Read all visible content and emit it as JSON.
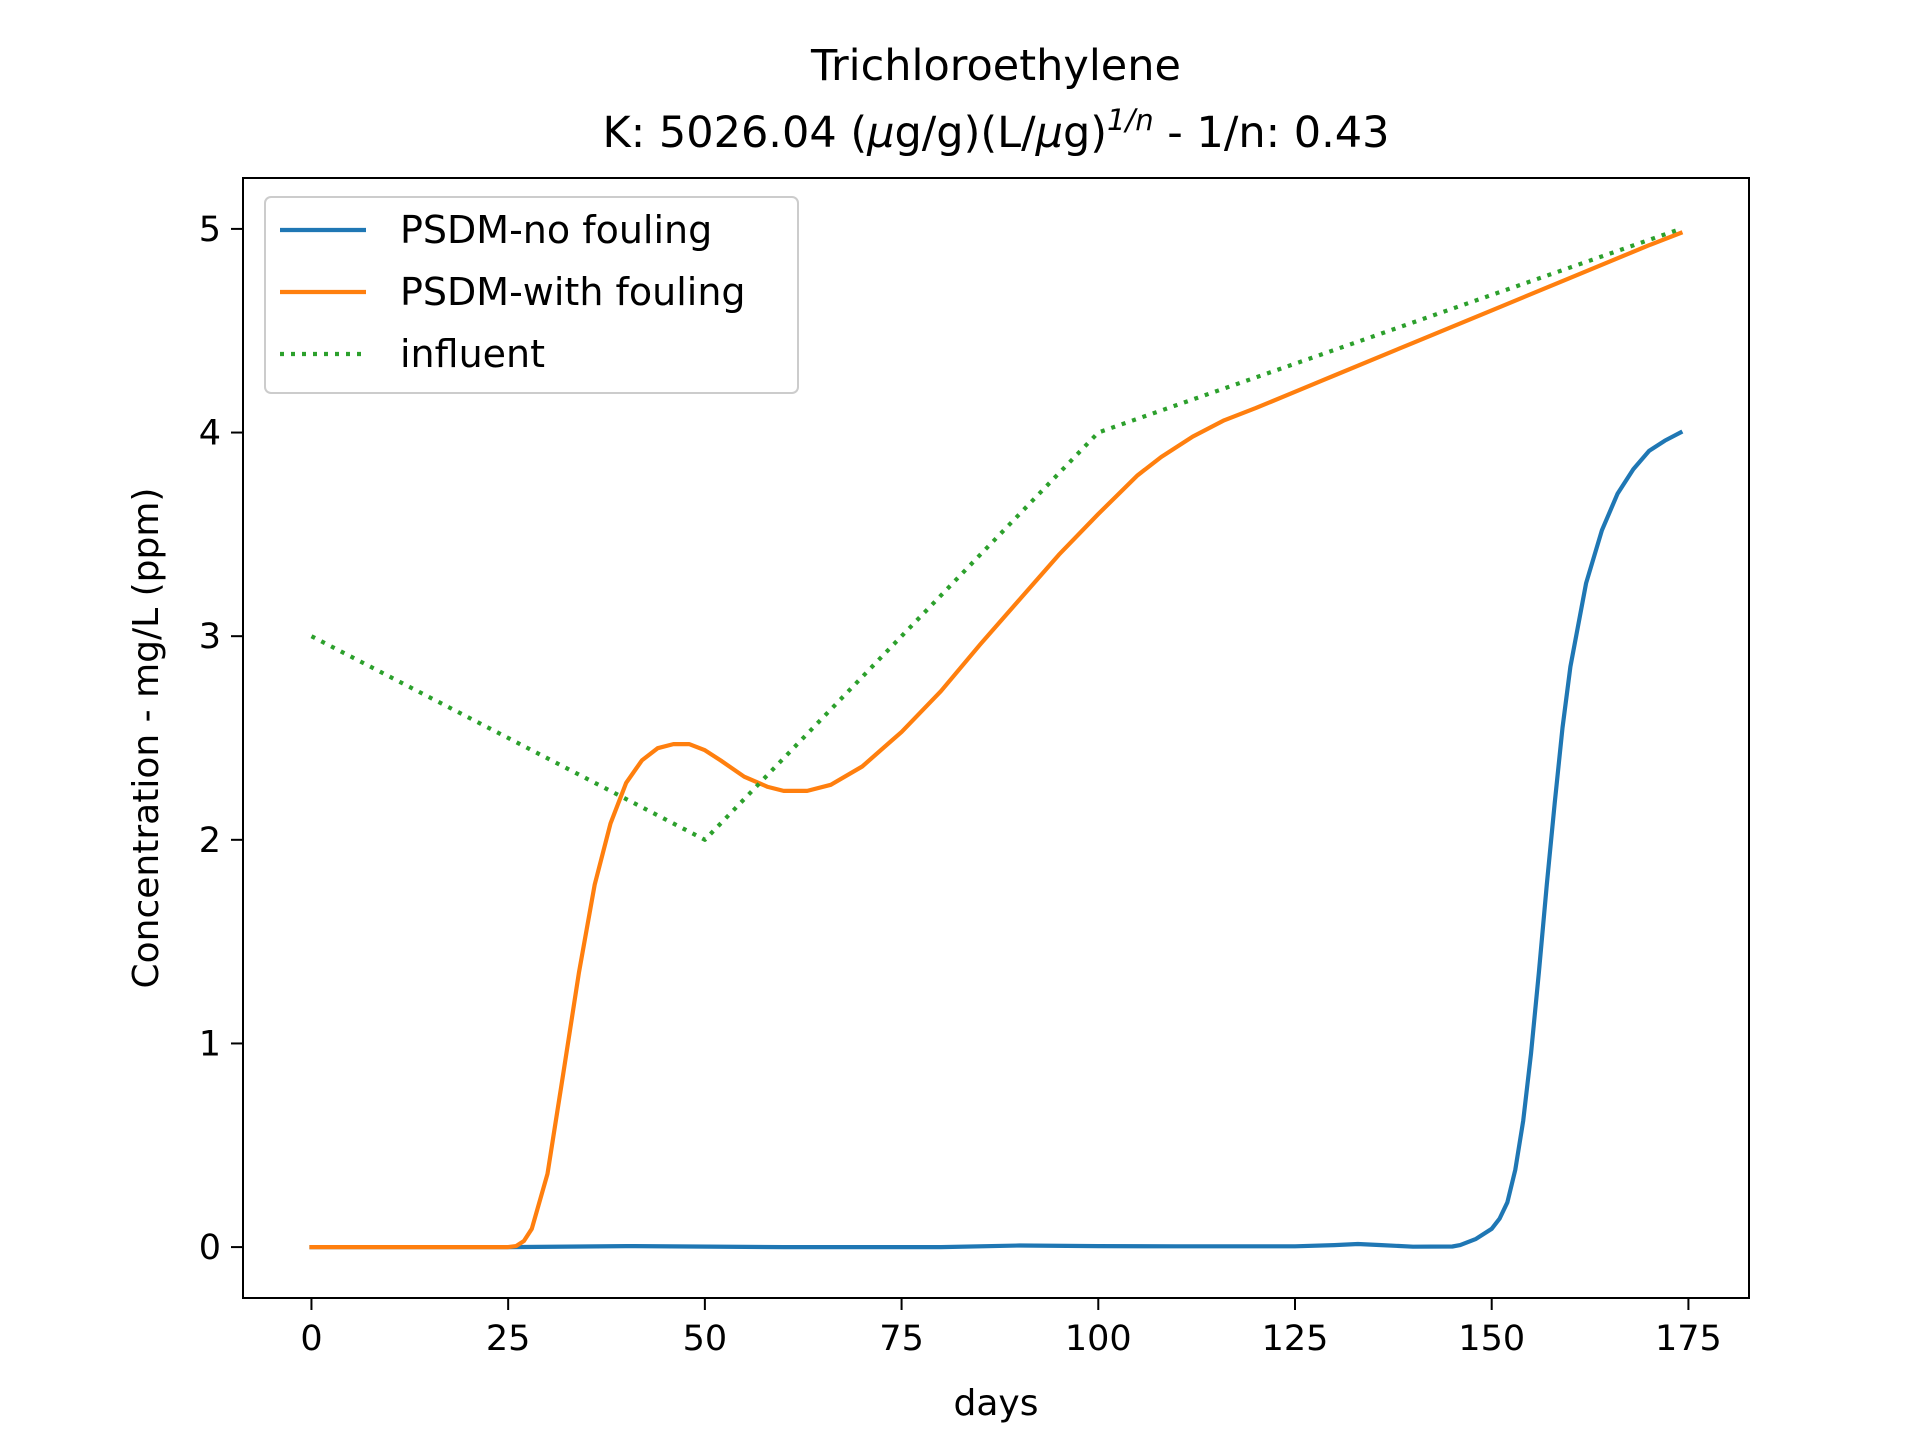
{
  "chart_data": {
    "type": "line",
    "title": "Trichloroethylene",
    "subtitle": {
      "prefix": "K: 5026.04 (",
      "mu1": "μ",
      "mid": "g/g)(L/",
      "mu2": "μ",
      "end": "g)",
      "sup": "1/n",
      "suffix": " - 1/n: 0.43"
    },
    "xlabel": "days",
    "ylabel": "Concentration - mg/L (ppm)",
    "xlim": [
      -8.7,
      182.7
    ],
    "ylim": [
      -0.25,
      5.25
    ],
    "xticks": [
      0,
      25,
      50,
      75,
      100,
      125,
      150,
      175
    ],
    "yticks": [
      0,
      1,
      2,
      3,
      4,
      5
    ],
    "grid": false,
    "legend": "upper-left",
    "series": [
      {
        "name": "PSDM-no fouling",
        "color": "#1f77b4",
        "style": "solid",
        "x": [
          0,
          10,
          20,
          25,
          40,
          60,
          80,
          90,
          100,
          110,
          120,
          125,
          130,
          133,
          136,
          140,
          145,
          146,
          148,
          150,
          151,
          152,
          153,
          154,
          155,
          156,
          157,
          158,
          159,
          160,
          162,
          164,
          166,
          168,
          170,
          172,
          174
        ],
        "y": [
          0,
          0,
          0,
          0,
          0.005,
          0,
          0,
          0.008,
          0.005,
          0.004,
          0.004,
          0.004,
          0.01,
          0.015,
          0.01,
          0.002,
          0.003,
          0.01,
          0.04,
          0.09,
          0.14,
          0.22,
          0.38,
          0.62,
          0.95,
          1.35,
          1.78,
          2.18,
          2.55,
          2.85,
          3.26,
          3.52,
          3.7,
          3.82,
          3.91,
          3.96,
          4.0
        ]
      },
      {
        "name": "PSDM-with fouling",
        "color": "#ff7f0e",
        "style": "solid",
        "x": [
          0,
          10,
          20,
          25,
          26,
          27,
          28,
          30,
          32,
          34,
          36,
          38,
          40,
          42,
          44,
          46,
          48,
          50,
          52,
          55,
          58,
          60,
          63,
          66,
          70,
          75,
          80,
          85,
          90,
          95,
          100,
          105,
          108,
          112,
          116,
          120,
          125,
          130,
          140,
          150,
          160,
          170,
          174
        ],
        "y": [
          0,
          0,
          0,
          0,
          0.005,
          0.03,
          0.09,
          0.36,
          0.85,
          1.35,
          1.78,
          2.08,
          2.28,
          2.39,
          2.45,
          2.47,
          2.47,
          2.44,
          2.39,
          2.31,
          2.26,
          2.24,
          2.24,
          2.27,
          2.36,
          2.53,
          2.73,
          2.96,
          3.18,
          3.4,
          3.6,
          3.79,
          3.88,
          3.98,
          4.06,
          4.12,
          4.2,
          4.28,
          4.44,
          4.6,
          4.76,
          4.92,
          4.98
        ]
      },
      {
        "name": "influent",
        "color": "#2ca02c",
        "style": "dotted",
        "x": [
          0,
          50,
          100,
          174
        ],
        "y": [
          3,
          2,
          4,
          5
        ]
      }
    ]
  }
}
